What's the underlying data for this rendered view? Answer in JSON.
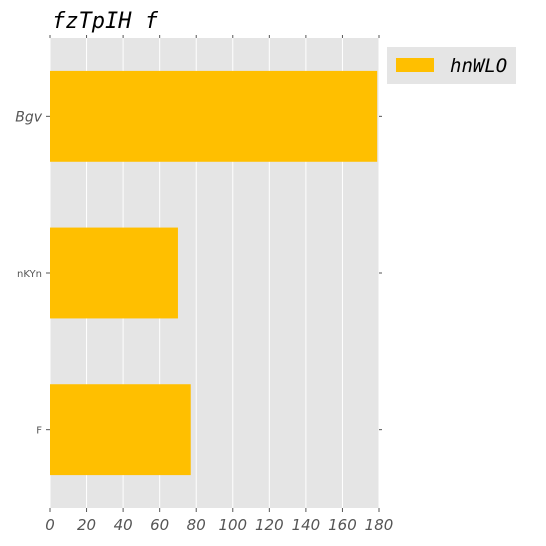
{
  "chart_data": {
    "type": "bar",
    "orientation": "horizontal",
    "title": "fzTpIH f",
    "categories": [
      "Bgv",
      "nKYn",
      "F"
    ],
    "series": [
      {
        "name": "hnWLO",
        "values": [
          179,
          70,
          77
        ]
      }
    ],
    "xlim": [
      0,
      180
    ],
    "x_ticks": [
      0,
      20,
      40,
      60,
      80,
      100,
      120,
      140,
      160,
      180
    ],
    "xlabel": "",
    "ylabel": "",
    "grid": true,
    "legend_position": "outside-top-right",
    "colors": {
      "bar": "#FFBF00",
      "plot_background": "#E5E5E5",
      "grid": "#FFFFFF"
    }
  }
}
